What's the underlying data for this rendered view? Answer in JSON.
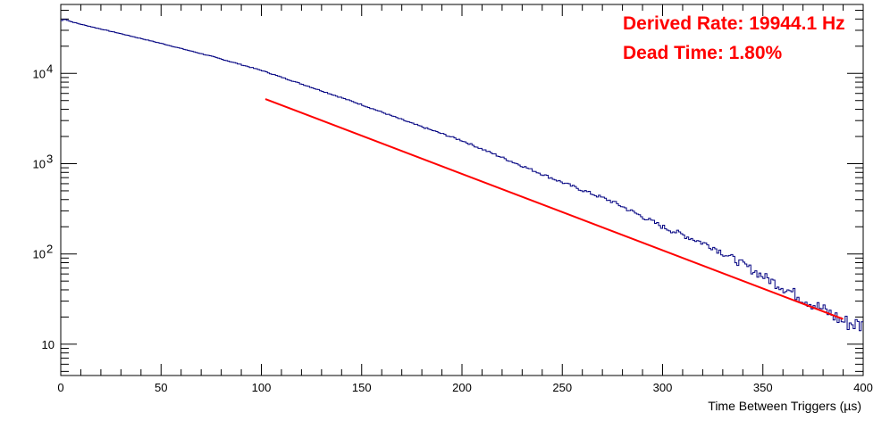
{
  "chart_data": {
    "type": "histogram",
    "title": "",
    "xlabel": "Time Between Triggers (µs)",
    "ylabel": "",
    "xlim": [
      0,
      400
    ],
    "ylim": [
      4.5,
      58000
    ],
    "y_scale": "log",
    "grid": false,
    "legend": "none",
    "x_ticks": [
      0,
      50,
      100,
      150,
      200,
      250,
      300,
      350,
      400
    ],
    "y_ticks": [
      {
        "value": 10,
        "base": "10",
        "exp": ""
      },
      {
        "value": 100,
        "base": "10",
        "exp": "2"
      },
      {
        "value": 1000,
        "base": "10",
        "exp": "3"
      },
      {
        "value": 10000,
        "base": "10",
        "exp": "4"
      }
    ],
    "bin_width": 1,
    "series": [
      {
        "role": "histogram",
        "color": "#000080",
        "x": [
          0,
          2,
          5,
          10,
          20,
          30,
          50,
          75,
          100,
          125,
          150,
          175,
          200,
          225,
          250,
          275,
          300,
          325,
          350,
          375,
          390,
          400
        ],
        "y": [
          38000,
          40000,
          37500,
          35000,
          31000,
          27500,
          21500,
          15500,
          10800,
          7000,
          4500,
          2800,
          1800,
          1050,
          620,
          380,
          200,
          120,
          57,
          28,
          18,
          16
        ]
      },
      {
        "role": "fit",
        "color": "#ff0000",
        "x": [
          102,
          390
        ],
        "y": [
          5200,
          19
        ]
      }
    ],
    "annotations": [
      {
        "text": "Derived Rate: 19944.1 Hz",
        "color": "#ff0000"
      },
      {
        "text": "Dead Time: 1.80%",
        "color": "#ff0000"
      }
    ]
  }
}
